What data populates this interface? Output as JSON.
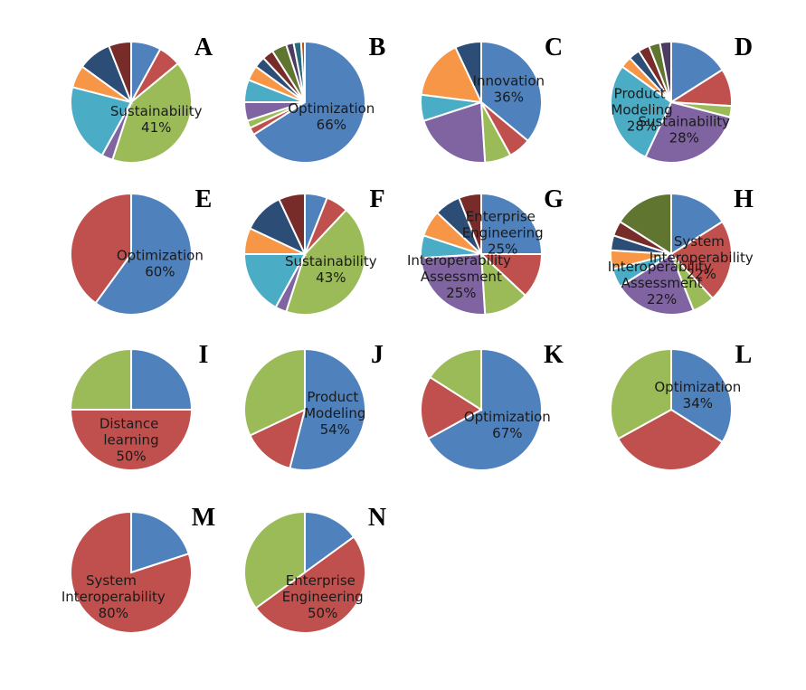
{
  "chart_data": [
    {
      "type": "pie",
      "title": "A",
      "values": [
        8,
        6,
        41,
        3,
        21,
        6,
        9,
        6
      ],
      "categories": [
        null,
        null,
        "Sustainability",
        null,
        null,
        null,
        null,
        null
      ],
      "value_labels": [
        null,
        null,
        "41%",
        null,
        null,
        null,
        null,
        null
      ],
      "colors": [
        "#4f81bd",
        "#c0504d",
        "#9bbb59",
        "#8064a2",
        "#4bacc6",
        "#f79646",
        "#2c4d75",
        "#772c2a"
      ]
    },
    {
      "type": "pie",
      "title": "B",
      "values": [
        66,
        2,
        2,
        5,
        6,
        4,
        3,
        3,
        4,
        2,
        2,
        1
      ],
      "categories": [
        "Optimization",
        null,
        null,
        null,
        null,
        null,
        null,
        null,
        null,
        null,
        null,
        null
      ],
      "value_labels": [
        "66%",
        null,
        null,
        null,
        null,
        null,
        null,
        null,
        null,
        null,
        null,
        null
      ],
      "colors": [
        "#4f81bd",
        "#c0504d",
        "#9bbb59",
        "#8064a2",
        "#4bacc6",
        "#f79646",
        "#2c4d75",
        "#772c2a",
        "#5f7530",
        "#4d3b62",
        "#276a7c",
        "#b65708"
      ]
    },
    {
      "type": "pie",
      "title": "C",
      "values": [
        36,
        6,
        7,
        21,
        7,
        16,
        7
      ],
      "categories": [
        "Innovation",
        null,
        null,
        null,
        null,
        null,
        null
      ],
      "value_labels": [
        "36%",
        null,
        null,
        null,
        null,
        null,
        null
      ],
      "colors": [
        "#4f81bd",
        "#c0504d",
        "#9bbb59",
        "#8064a2",
        "#4bacc6",
        "#f79646",
        "#2c4d75"
      ]
    },
    {
      "type": "pie",
      "title": "D",
      "values": [
        16,
        10,
        3,
        28,
        28,
        3,
        3,
        3,
        3,
        3
      ],
      "categories": [
        null,
        null,
        null,
        "Sustainability",
        "Product Modeling",
        null,
        null,
        null,
        null,
        null
      ],
      "value_labels": [
        null,
        null,
        null,
        "28%",
        "28%",
        null,
        null,
        null,
        null,
        null
      ],
      "colors": [
        "#4f81bd",
        "#c0504d",
        "#9bbb59",
        "#8064a2",
        "#4bacc6",
        "#f79646",
        "#2c4d75",
        "#772c2a",
        "#5f7530",
        "#4d3b62"
      ]
    },
    {
      "type": "pie",
      "title": "E",
      "values": [
        60,
        40
      ],
      "categories": [
        "Optimization",
        null
      ],
      "value_labels": [
        "60%",
        null
      ],
      "colors": [
        "#4f81bd",
        "#c0504d"
      ]
    },
    {
      "type": "pie",
      "title": "F",
      "values": [
        6,
        6,
        43,
        3,
        17,
        7,
        11,
        7
      ],
      "categories": [
        null,
        null,
        "Sustainability",
        null,
        null,
        null,
        null,
        null
      ],
      "value_labels": [
        null,
        null,
        "43%",
        null,
        null,
        null,
        null,
        null
      ],
      "colors": [
        "#4f81bd",
        "#c0504d",
        "#9bbb59",
        "#8064a2",
        "#4bacc6",
        "#f79646",
        "#2c4d75",
        "#772c2a"
      ]
    },
    {
      "type": "pie",
      "title": "G",
      "values": [
        25,
        12,
        12,
        25,
        6,
        7,
        7,
        6
      ],
      "categories": [
        "Enterprise Engineering",
        null,
        null,
        "Interoperability Assessment",
        null,
        null,
        null,
        null
      ],
      "value_labels": [
        "25%",
        null,
        null,
        "25%",
        null,
        null,
        null,
        null
      ],
      "colors": [
        "#4f81bd",
        "#c0504d",
        "#9bbb59",
        "#8064a2",
        "#4bacc6",
        "#f79646",
        "#2c4d75",
        "#772c2a"
      ]
    },
    {
      "type": "pie",
      "title": "H",
      "values": [
        16,
        22,
        6,
        22,
        5,
        5,
        4,
        4,
        16
      ],
      "categories": [
        null,
        "System Interoperability",
        null,
        "Interoperability Assessment",
        null,
        null,
        null,
        null,
        null
      ],
      "value_labels": [
        null,
        "22%",
        null,
        "22%",
        null,
        null,
        null,
        null,
        null
      ],
      "colors": [
        "#4f81bd",
        "#c0504d",
        "#9bbb59",
        "#8064a2",
        "#4bacc6",
        "#f79646",
        "#2c4d75",
        "#772c2a",
        "#5f7530"
      ]
    },
    {
      "type": "pie",
      "title": "I",
      "values": [
        25,
        50,
        25
      ],
      "categories": [
        null,
        "Distance learning",
        null
      ],
      "value_labels": [
        null,
        "50%",
        null
      ],
      "colors": [
        "#4f81bd",
        "#c0504d",
        "#9bbb59"
      ]
    },
    {
      "type": "pie",
      "title": "J",
      "values": [
        54,
        14,
        32
      ],
      "categories": [
        "Product Modeling",
        null,
        null
      ],
      "value_labels": [
        "54%",
        null,
        null
      ],
      "colors": [
        "#4f81bd",
        "#c0504d",
        "#9bbb59"
      ]
    },
    {
      "type": "pie",
      "title": "K",
      "values": [
        67,
        17,
        16
      ],
      "categories": [
        "Optimization",
        null,
        null
      ],
      "value_labels": [
        "67%",
        null,
        null
      ],
      "colors": [
        "#4f81bd",
        "#c0504d",
        "#9bbb59"
      ]
    },
    {
      "type": "pie",
      "title": "L",
      "values": [
        34,
        33,
        33
      ],
      "categories": [
        "Optimization",
        null,
        null
      ],
      "value_labels": [
        "34%",
        null,
        null
      ],
      "colors": [
        "#4f81bd",
        "#c0504d",
        "#9bbb59"
      ]
    },
    {
      "type": "pie",
      "title": "M",
      "values": [
        20,
        80
      ],
      "categories": [
        null,
        "System Interoperability"
      ],
      "value_labels": [
        null,
        "80%"
      ],
      "colors": [
        "#4f81bd",
        "#c0504d"
      ]
    },
    {
      "type": "pie",
      "title": "N",
      "values": [
        15,
        50,
        35
      ],
      "categories": [
        null,
        "Enterprise Engineering",
        null
      ],
      "value_labels": [
        null,
        "50%",
        null
      ],
      "colors": [
        "#4f81bd",
        "#c0504d",
        "#9bbb59"
      ]
    }
  ]
}
